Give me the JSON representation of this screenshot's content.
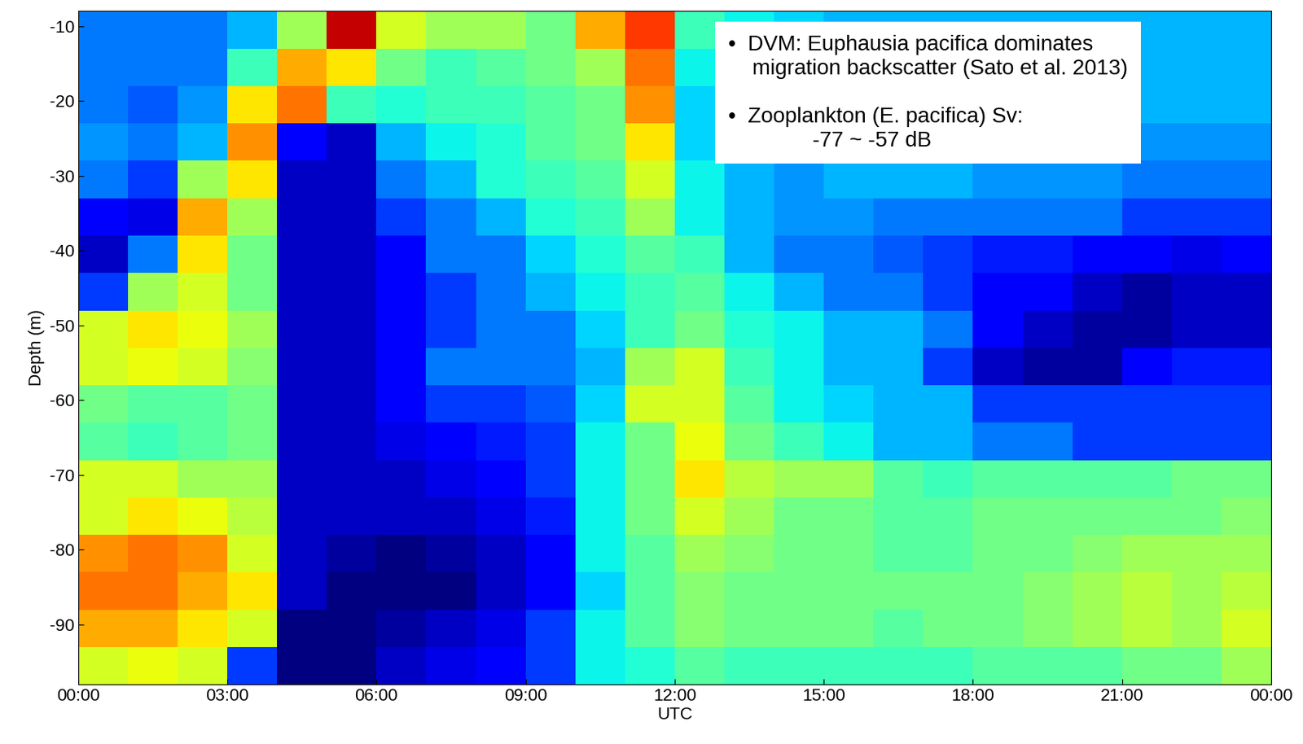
{
  "chart_data": {
    "type": "heatmap",
    "xlabel": "UTC",
    "ylabel": "Depth (m)",
    "annotations": [
      "•  DVM: Euphausia pacifica dominates\n    migration backscatter (Sato et al. 2013)",
      "•  Zooplankton (E. pacifica) Sv:\n              -77 ~ -57 dB"
    ],
    "color": "jet",
    "color_range": [
      -88,
      -55
    ],
    "xlim": [
      0,
      24
    ],
    "ylim": [
      -98,
      -8
    ],
    "xticks": [
      {
        "value": 0,
        "label": "00:00"
      },
      {
        "value": 3,
        "label": "03:00"
      },
      {
        "value": 6,
        "label": "06:00"
      },
      {
        "value": 9,
        "label": "09:00"
      },
      {
        "value": 12,
        "label": "12:00"
      },
      {
        "value": 15,
        "label": "15:00"
      },
      {
        "value": 18,
        "label": "18:00"
      },
      {
        "value": 21,
        "label": "21:00"
      },
      {
        "value": 24,
        "label": "00:00"
      }
    ],
    "yticks": [
      -90,
      -80,
      -70,
      -60,
      -50,
      -40,
      -30,
      -20,
      -10
    ],
    "x_edges": [
      0,
      1,
      2,
      3,
      4,
      5,
      6,
      7,
      8,
      9,
      10,
      11,
      12,
      13,
      14,
      15,
      16,
      17,
      18,
      19,
      20,
      21,
      22,
      23,
      24
    ],
    "y_edges": [
      -8,
      -13,
      -18,
      -23,
      -28,
      -33,
      -38,
      -43,
      -48,
      -53,
      -58,
      -63,
      -68,
      -73,
      -78,
      -83,
      -88,
      -93,
      -98
    ],
    "cells_by_hour": [
      [
        -80,
        -80,
        -80,
        -79,
        -80,
        -84,
        -86,
        -82,
        -68,
        -68,
        -72,
        -73,
        -68,
        -68,
        -63,
        -62,
        -64,
        -68
      ],
      [
        -80,
        -80,
        -81,
        -80,
        -82,
        -85,
        -80,
        -70,
        -66,
        -67,
        -73,
        -74,
        -68,
        -66,
        -62,
        -62,
        -64,
        -67
      ],
      [
        -80,
        -80,
        -79,
        -78,
        -70,
        -64,
        -66,
        -68,
        -67,
        -68,
        -73,
        -73,
        -70,
        -67,
        -63,
        -64,
        -66,
        -68
      ],
      [
        -78,
        -74,
        -66,
        -63,
        -66,
        -70,
        -72,
        -72,
        -70,
        -71,
        -72,
        -72,
        -70,
        -69,
        -68,
        -66,
        -68,
        -82
      ],
      [
        -70,
        -64,
        -62,
        -84,
        -86,
        -86,
        -86,
        -86,
        -86,
        -86,
        -86,
        -86,
        -86,
        -86,
        -86,
        -86,
        -88,
        -88
      ],
      [
        -57,
        -66,
        -74,
        -86,
        -86,
        -86,
        -86,
        -86,
        -86,
        -86,
        -86,
        -86,
        -86,
        -86,
        -87,
        -88,
        -88,
        -88
      ],
      [
        -68,
        -72,
        -75,
        -78,
        -80,
        -82,
        -84,
        -84,
        -84,
        -84,
        -84,
        -85,
        -86,
        -86,
        -88,
        -88,
        -87,
        -86
      ],
      [
        -70,
        -74,
        -74,
        -76,
        -78,
        -80,
        -80,
        -82,
        -82,
        -80,
        -82,
        -84,
        -85,
        -86,
        -87,
        -88,
        -86,
        -85
      ],
      [
        -70,
        -73,
        -74,
        -75,
        -75,
        -78,
        -80,
        -80,
        -80,
        -80,
        -82,
        -83,
        -84,
        -85,
        -86,
        -86,
        -85,
        -84
      ],
      [
        -72,
        -72,
        -73,
        -73,
        -74,
        -75,
        -77,
        -78,
        -80,
        -80,
        -81,
        -82,
        -82,
        -83,
        -84,
        -84,
        -82,
        -82
      ],
      [
        -64,
        -70,
        -72,
        -72,
        -73,
        -74,
        -75,
        -76,
        -77,
        -78,
        -77,
        -76,
        -76,
        -76,
        -76,
        -77,
        -76,
        -76
      ],
      [
        -60,
        -62,
        -63,
        -66,
        -68,
        -70,
        -73,
        -74,
        -74,
        -70,
        -68,
        -72,
        -72,
        -72,
        -73,
        -73,
        -73,
        -75
      ],
      [
        -74,
        -76,
        -77,
        -77,
        -76,
        -76,
        -74,
        -73,
        -72,
        -68,
        -68,
        -67,
        -66,
        -68,
        -70,
        -71,
        -71,
        -73
      ],
      [
        -76,
        -78,
        -78,
        -78,
        -78,
        -78,
        -78,
        -76,
        -75,
        -74,
        -73,
        -72,
        -69,
        -70,
        -71,
        -72,
        -72,
        -74
      ],
      [
        -77,
        -78,
        -78,
        -78,
        -79,
        -79,
        -80,
        -78,
        -76,
        -76,
        -76,
        -74,
        -70,
        -72,
        -72,
        -72,
        -72,
        -74
      ],
      [
        -78,
        -78,
        -78,
        -78,
        -78,
        -79,
        -80,
        -80,
        -78,
        -78,
        -77,
        -76,
        -70,
        -72,
        -72,
        -72,
        -72,
        -74
      ],
      [
        -78,
        -78,
        -78,
        -78,
        -78,
        -80,
        -81,
        -80,
        -78,
        -78,
        -78,
        -78,
        -73,
        -73,
        -73,
        -72,
        -73,
        -74
      ],
      [
        -78,
        -78,
        -78,
        -78,
        -78,
        -80,
        -82,
        -82,
        -80,
        -82,
        -78,
        -78,
        -74,
        -73,
        -73,
        -72,
        -72,
        -74
      ],
      [
        -78,
        -78,
        -78,
        -79,
        -79,
        -80,
        -83,
        -84,
        -84,
        -86,
        -82,
        -80,
        -73,
        -72,
        -72,
        -72,
        -72,
        -73
      ],
      [
        -78,
        -78,
        -78,
        -79,
        -79,
        -80,
        -83,
        -84,
        -86,
        -87,
        -82,
        -80,
        -73,
        -72,
        -72,
        -71,
        -71,
        -73
      ],
      [
        -78,
        -78,
        -78,
        -79,
        -79,
        -80,
        -84,
        -86,
        -87,
        -87,
        -82,
        -82,
        -73,
        -72,
        -71,
        -70,
        -70,
        -73
      ],
      [
        -78,
        -78,
        -78,
        -79,
        -80,
        -82,
        -84,
        -87,
        -87,
        -84,
        -82,
        -82,
        -73,
        -72,
        -70,
        -69,
        -69,
        -72
      ],
      [
        -78,
        -78,
        -78,
        -79,
        -80,
        -82,
        -85,
        -86,
        -86,
        -83,
        -82,
        -82,
        -72,
        -72,
        -70,
        -70,
        -70,
        -72
      ],
      [
        -78,
        -78,
        -78,
        -79,
        -80,
        -82,
        -84,
        -86,
        -86,
        -83,
        -82,
        -82,
        -72,
        -71,
        -70,
        -69,
        -68,
        -70
      ]
    ]
  }
}
